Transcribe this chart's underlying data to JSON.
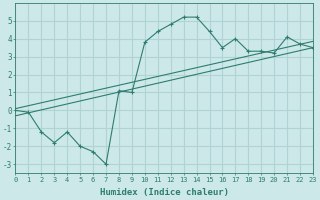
{
  "main_x": [
    0,
    1,
    2,
    3,
    4,
    5,
    6,
    7,
    8,
    9,
    10,
    11,
    12,
    13,
    14,
    15,
    16,
    17,
    18,
    19,
    20,
    21,
    22,
    23
  ],
  "main_y": [
    0.0,
    -0.1,
    -1.2,
    -1.8,
    -1.2,
    -2.0,
    -2.3,
    -3.0,
    1.1,
    1.0,
    3.8,
    4.4,
    4.8,
    5.2,
    5.2,
    4.4,
    3.5,
    4.0,
    3.3,
    3.3,
    3.2,
    4.1,
    3.7,
    3.5
  ],
  "line1_x": [
    0,
    23
  ],
  "line1_y": [
    -0.3,
    3.5
  ],
  "line2_x": [
    0,
    23
  ],
  "line2_y": [
    0.1,
    3.85
  ],
  "line_color": "#2e7d6e",
  "bg_color": "#cce8e8",
  "grid_color": "#b0d4d4",
  "xlabel": "Humidex (Indice chaleur)",
  "xlim": [
    0,
    23
  ],
  "ylim": [
    -3.5,
    6.0
  ],
  "yticks": [
    -3,
    -2,
    -1,
    0,
    1,
    2,
    3,
    4,
    5
  ],
  "xticks": [
    0,
    1,
    2,
    3,
    4,
    5,
    6,
    7,
    8,
    9,
    10,
    11,
    12,
    13,
    14,
    15,
    16,
    17,
    18,
    19,
    20,
    21,
    22,
    23
  ]
}
